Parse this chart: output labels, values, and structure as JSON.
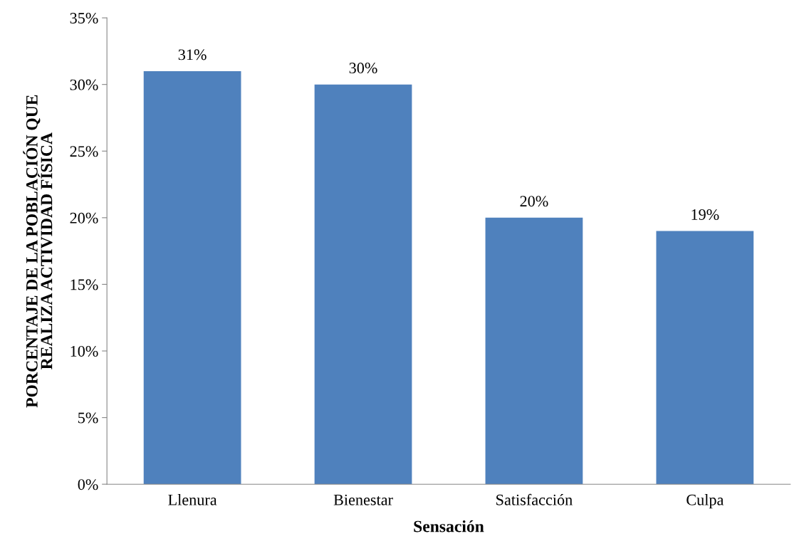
{
  "chart_data": {
    "type": "bar",
    "xlabel": "Sensación",
    "ylabel": "PORCENTAJE DE LA POBLACIÓN QUE\nREALIZA ACTIVIDAD FÍSICA",
    "categories": [
      "Llenura",
      "Bienestar",
      "Satisfacción",
      "Culpa"
    ],
    "values": [
      31,
      30,
      20,
      19
    ],
    "color": "#4f81bd",
    "value_labels": [
      "31%",
      "30%",
      "20%",
      "19%"
    ],
    "ylim": [
      0,
      35
    ],
    "yticks": [
      {
        "value": 0,
        "label": "0%"
      },
      {
        "value": 5,
        "label": "5%"
      },
      {
        "value": 10,
        "label": "10%"
      },
      {
        "value": 15,
        "label": "15%"
      },
      {
        "value": 20,
        "label": "20%"
      },
      {
        "value": 25,
        "label": "25%"
      },
      {
        "value": 30,
        "label": "30%"
      },
      {
        "value": 35,
        "label": "35%"
      }
    ],
    "grid": false,
    "legend": false
  }
}
